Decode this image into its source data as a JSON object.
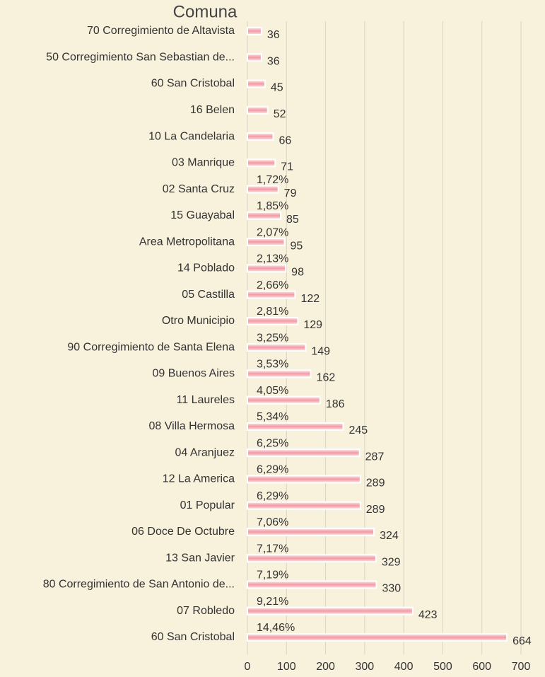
{
  "chart_data": {
    "type": "barh",
    "title": "Comuna",
    "categories": [
      "70 Corregimiento de Altavista",
      "50 Corregimiento San Sebastian de...",
      "60 San  Cristobal",
      "16 Belen",
      "10 La Candelaria",
      "03 Manrique",
      "02 Santa Cruz",
      "15 Guayabal",
      "Area Metropolitana",
      "14 Poblado",
      "05 Castilla",
      "Otro Municipio",
      "90 Corregimiento de Santa Elena",
      "09 Buenos Aires",
      "11 Laureles",
      "08 Villa Hermosa",
      "04 Aranjuez",
      "12 La America",
      "01 Popular",
      "06 Doce De Octubre",
      "13 San Javier",
      "80 Corregimiento de San Antonio de...",
      "07 Robledo",
      "60 San Cristobal"
    ],
    "values": [
      36,
      36,
      45,
      52,
      66,
      71,
      79,
      85,
      95,
      98,
      122,
      129,
      149,
      162,
      186,
      245,
      287,
      289,
      289,
      324,
      329,
      330,
      423,
      664
    ],
    "percent_labels": [
      null,
      null,
      null,
      null,
      null,
      null,
      "1,72%",
      "1,85%",
      "2,07%",
      "2,13%",
      "2,66%",
      "2,81%",
      "3,25%",
      "3,53%",
      "4,05%",
      "5,34%",
      "6,25%",
      "6,29%",
      "6,29%",
      "7,06%",
      "7,17%",
      "7,19%",
      "9,21%",
      "14,46%"
    ],
    "color": "#f29aa3",
    "xlim": [
      0,
      700
    ],
    "xticks": [
      0,
      100,
      200,
      300,
      400,
      500,
      600,
      700
    ],
    "grid": true
  }
}
